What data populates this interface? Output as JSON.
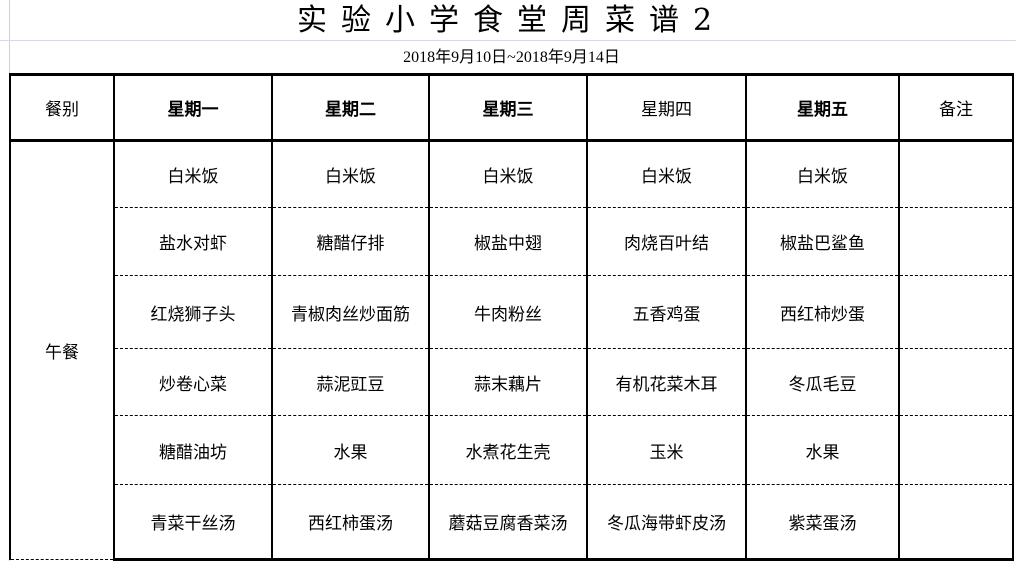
{
  "title": "实验小学食堂周菜谱2",
  "date_range": "2018年9月10日~2018年9月14日",
  "headers": [
    "餐别",
    "星期一",
    "星期二",
    "星期三",
    "星期四",
    "星期五",
    "备注"
  ],
  "meal": "午餐",
  "rows": [
    [
      "白米饭",
      "白米饭",
      "白米饭",
      "白米饭",
      "白米饭",
      ""
    ],
    [
      "盐水对虾",
      "糖醋仔排",
      "椒盐中翅",
      "肉烧百叶结",
      "椒盐巴鲨鱼",
      ""
    ],
    [
      "红烧狮子头",
      "青椒肉丝炒面筋",
      "牛肉粉丝",
      "五香鸡蛋",
      "西红柿炒蛋",
      ""
    ],
    [
      "炒卷心菜",
      "蒜泥豇豆",
      "蒜末藕片",
      "有机花菜木耳",
      "冬瓜毛豆",
      ""
    ],
    [
      "糖醋油坊",
      "水果",
      "水煮花生壳",
      "玉米",
      "水果",
      ""
    ],
    [
      "青菜干丝汤",
      "西红柿蛋汤",
      "蘑菇豆腐香菜汤",
      "冬瓜海带虾皮汤",
      "紫菜蛋汤",
      ""
    ]
  ]
}
